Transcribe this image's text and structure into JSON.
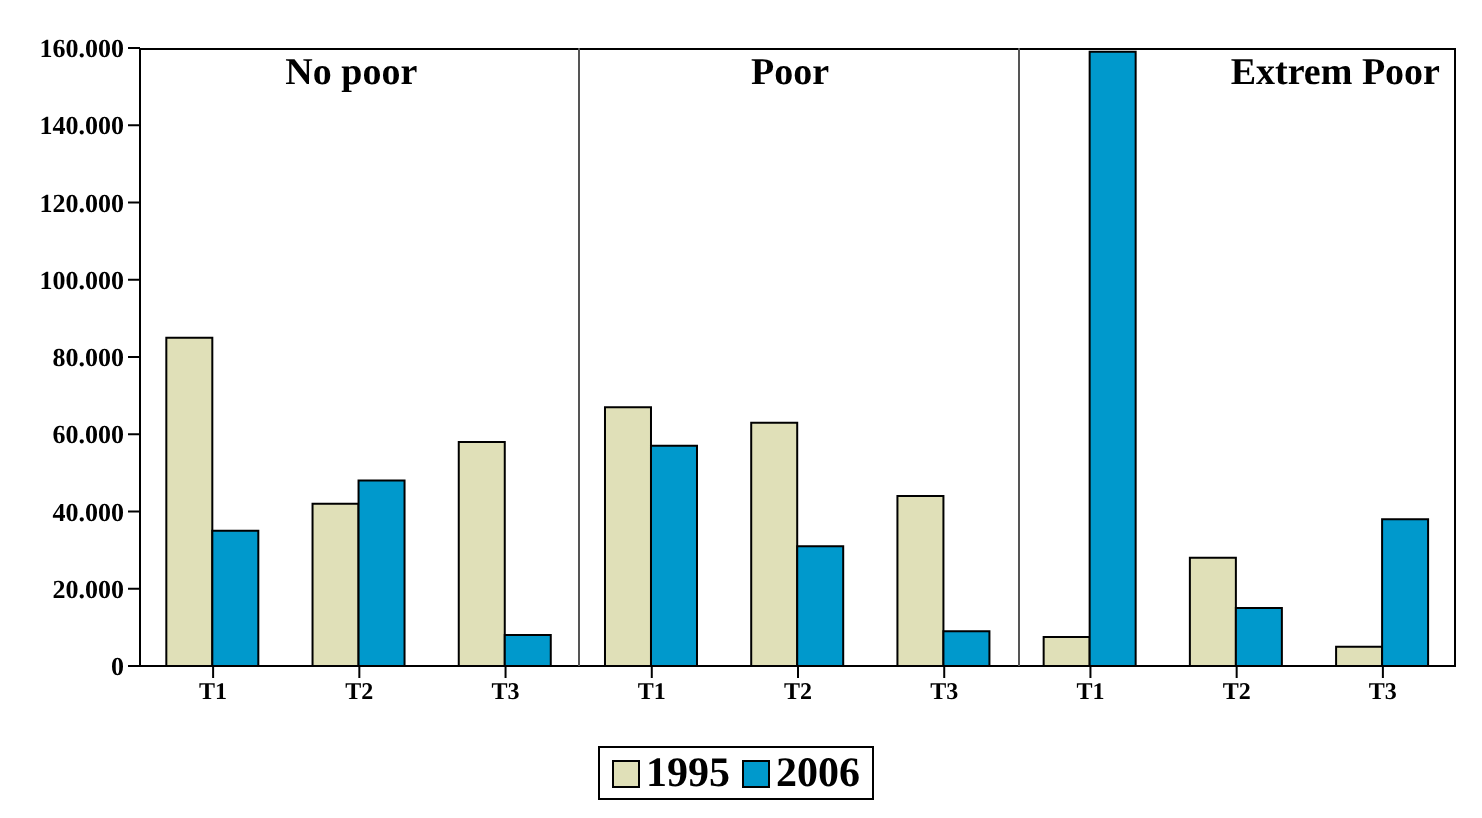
{
  "chart_data": {
    "type": "bar",
    "categories": [
      "T1",
      "T2",
      "T3",
      "T1",
      "T2",
      "T3",
      "T1",
      "T2",
      "T3"
    ],
    "series": [
      {
        "name": "1995",
        "color": "#e0e0b8",
        "values": [
          85000,
          42000,
          58000,
          67000,
          63000,
          44000,
          7500,
          28000,
          5000
        ]
      },
      {
        "name": "2006",
        "color": "#0099cc",
        "values": [
          35000,
          48000,
          8000,
          57000,
          31000,
          9000,
          159000,
          15000,
          38000
        ]
      }
    ],
    "annotations": [
      "No poor",
      "Poor",
      "Extrem Poor"
    ],
    "ylim": [
      0,
      160000
    ],
    "yticks": [
      {
        "value": 0,
        "label": "0"
      },
      {
        "value": 20000,
        "label": "20.000"
      },
      {
        "value": 40000,
        "label": "40.000"
      },
      {
        "value": 60000,
        "label": "60.000"
      },
      {
        "value": 80000,
        "label": "80.000"
      },
      {
        "value": 100000,
        "label": "100.000"
      },
      {
        "value": 120000,
        "label": "120.000"
      },
      {
        "value": 140000,
        "label": "140.000"
      },
      {
        "value": 160000,
        "label": "160.000"
      }
    ],
    "grid": false,
    "legend": "bottom"
  }
}
